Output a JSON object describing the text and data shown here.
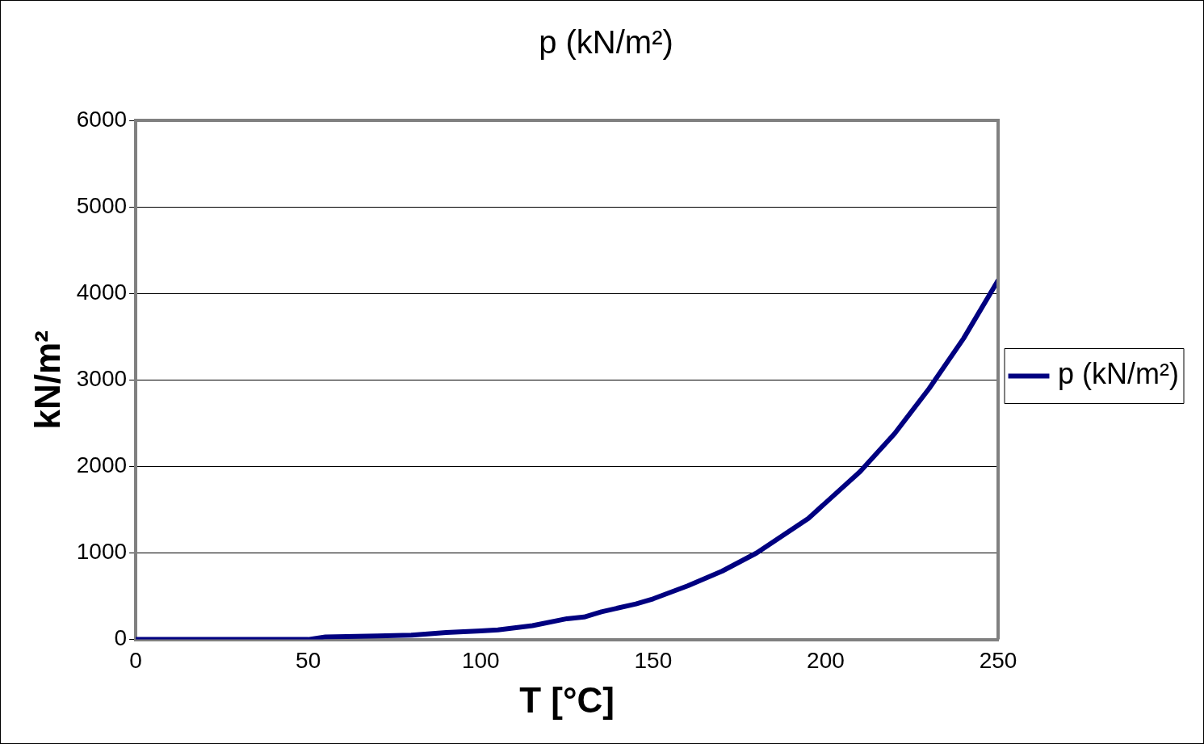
{
  "chart_data": {
    "type": "line",
    "title": "p (kN/m²)",
    "xlabel": "T [°C]",
    "ylabel": "kN/m²",
    "series": [
      {
        "name": "p (kN/m²)",
        "color": "#000080",
        "x": [
          0,
          50,
          55,
          70,
          80,
          90,
          100,
          105,
          115,
          125,
          130,
          135,
          145,
          150,
          160,
          170,
          180,
          195,
          200,
          210,
          220,
          230,
          240,
          250
        ],
        "values": [
          0,
          0,
          30,
          40,
          50,
          80,
          100,
          110,
          160,
          240,
          260,
          320,
          410,
          470,
          620,
          790,
          1000,
          1400,
          1580,
          1940,
          2380,
          2900,
          3480,
          4150
        ]
      }
    ],
    "xlim": [
      0,
      250
    ],
    "xticks": [
      0,
      50,
      100,
      150,
      200,
      250
    ],
    "ylim": [
      0,
      6000
    ],
    "yticks": [
      0,
      1000,
      2000,
      3000,
      4000,
      5000,
      6000
    ],
    "grid": "y",
    "legend": "right",
    "marker": "none",
    "line_style": "solid"
  }
}
